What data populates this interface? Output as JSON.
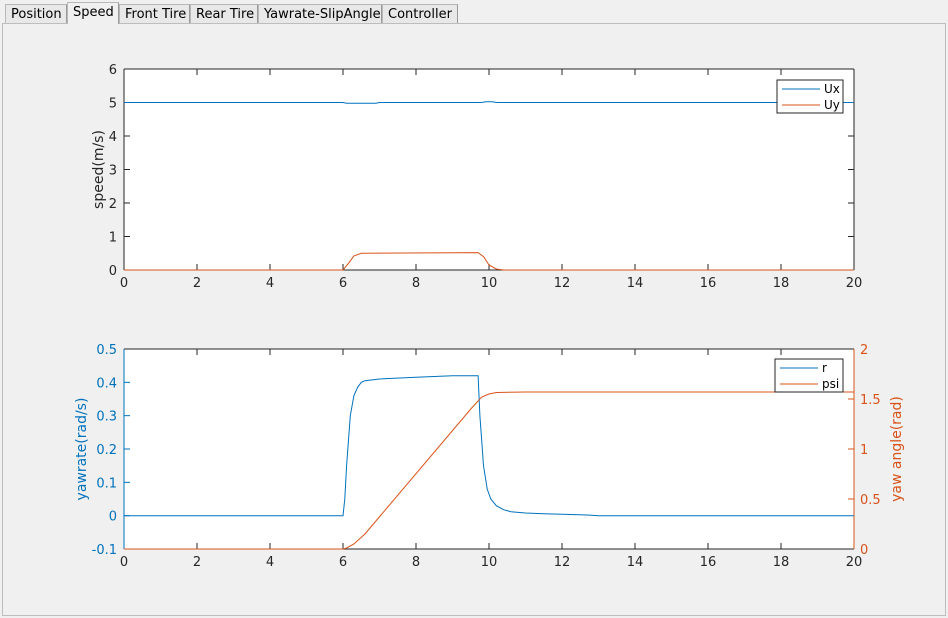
{
  "tabs": [
    {
      "label": "Position",
      "active": false
    },
    {
      "label": "Speed",
      "active": true
    },
    {
      "label": "Front Tire",
      "active": false
    },
    {
      "label": "Rear Tire",
      "active": false
    },
    {
      "label": "Yawrate-SlipAngle",
      "active": false
    },
    {
      "label": "Controller",
      "active": false
    }
  ],
  "colors": {
    "blue": "#0072bd",
    "orange": "#d95319"
  },
  "chart_data": [
    {
      "type": "line",
      "title": "",
      "xlabel": "",
      "ylabel": "speed(m/s)",
      "xlim": [
        0,
        20
      ],
      "ylim": [
        0,
        6
      ],
      "xticks": [
        "0",
        "2",
        "4",
        "6",
        "8",
        "10",
        "12",
        "14",
        "16",
        "18",
        "20"
      ],
      "yticks": [
        "0",
        "1",
        "2",
        "3",
        "4",
        "5",
        "6"
      ],
      "grid": false,
      "legend_position": "top-right",
      "series": [
        {
          "name": "Ux",
          "color": "#0072bd",
          "x": [
            0,
            6.0,
            6.1,
            6.9,
            7.0,
            9.8,
            9.9,
            10.1,
            10.2,
            20
          ],
          "y": [
            5.0,
            5.0,
            4.98,
            4.98,
            5.0,
            5.0,
            5.02,
            5.02,
            5.0,
            5.0
          ]
        },
        {
          "name": "Uy",
          "color": "#d95319",
          "x": [
            0,
            6.0,
            6.15,
            6.3,
            6.5,
            9.7,
            9.85,
            10.0,
            10.2,
            10.4,
            20
          ],
          "y": [
            0,
            0,
            0.2,
            0.42,
            0.5,
            0.52,
            0.4,
            0.15,
            0.03,
            0,
            0
          ]
        }
      ]
    },
    {
      "type": "line",
      "title": "",
      "xlabel": "",
      "ylabel": "yawrate(rad/s)",
      "y2label": "yaw angle(rad)",
      "xlim": [
        0,
        20
      ],
      "ylim": [
        -0.1,
        0.5
      ],
      "y2lim": [
        0,
        2
      ],
      "xticks": [
        "0",
        "2",
        "4",
        "6",
        "8",
        "10",
        "12",
        "14",
        "16",
        "18",
        "20"
      ],
      "yticks": [
        "-0.1",
        "0",
        "0.1",
        "0.2",
        "0.3",
        "0.4",
        "0.5"
      ],
      "y2ticks": [
        "0",
        "0.5",
        "1",
        "1.5",
        "2"
      ],
      "grid": false,
      "legend_position": "top-right",
      "series": [
        {
          "name": "r",
          "color": "#0072bd",
          "axis": "left",
          "x": [
            0,
            6.0,
            6.05,
            6.1,
            6.2,
            6.3,
            6.4,
            6.5,
            6.6,
            7.0,
            8.0,
            9.0,
            9.7,
            9.75,
            9.85,
            9.95,
            10.05,
            10.2,
            10.4,
            10.6,
            11.0,
            11.5,
            12.0,
            12.7,
            13.0,
            20
          ],
          "y": [
            0,
            0,
            0.05,
            0.15,
            0.3,
            0.36,
            0.385,
            0.4,
            0.405,
            0.41,
            0.415,
            0.42,
            0.42,
            0.3,
            0.15,
            0.08,
            0.05,
            0.03,
            0.018,
            0.012,
            0.008,
            0.006,
            0.004,
            0.002,
            0,
            0
          ]
        },
        {
          "name": "psi",
          "color": "#d95319",
          "axis": "right",
          "x": [
            0,
            6.0,
            6.1,
            6.3,
            6.6,
            9.5,
            9.8,
            10.0,
            10.2,
            11.0,
            20
          ],
          "y": [
            0,
            0,
            0.01,
            0.05,
            0.15,
            1.4,
            1.52,
            1.55,
            1.565,
            1.57,
            1.57
          ]
        }
      ]
    }
  ]
}
